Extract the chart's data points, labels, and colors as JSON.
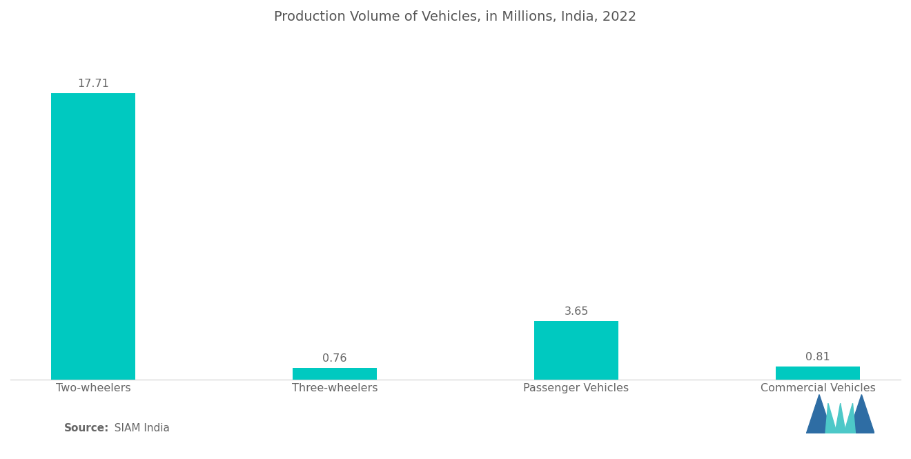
{
  "title": "Production Volume of Vehicles, in Millions, India, 2022",
  "categories": [
    "Two-wheelers",
    "Three-wheelers",
    "Passenger Vehicles",
    "Commercial Vehicles"
  ],
  "values": [
    17.71,
    0.76,
    3.65,
    0.81
  ],
  "bar_color": "#00C9C0",
  "background_color": "#ffffff",
  "source_label_bold": "Source:",
  "source_text": "  SIAM India",
  "title_fontsize": 14,
  "label_fontsize": 11.5,
  "value_fontsize": 11.5,
  "source_fontsize": 11,
  "ylim": [
    0,
    21
  ],
  "bar_width": 0.35,
  "logo_blue": "#2E6DA4",
  "logo_teal": "#4DC8C8"
}
